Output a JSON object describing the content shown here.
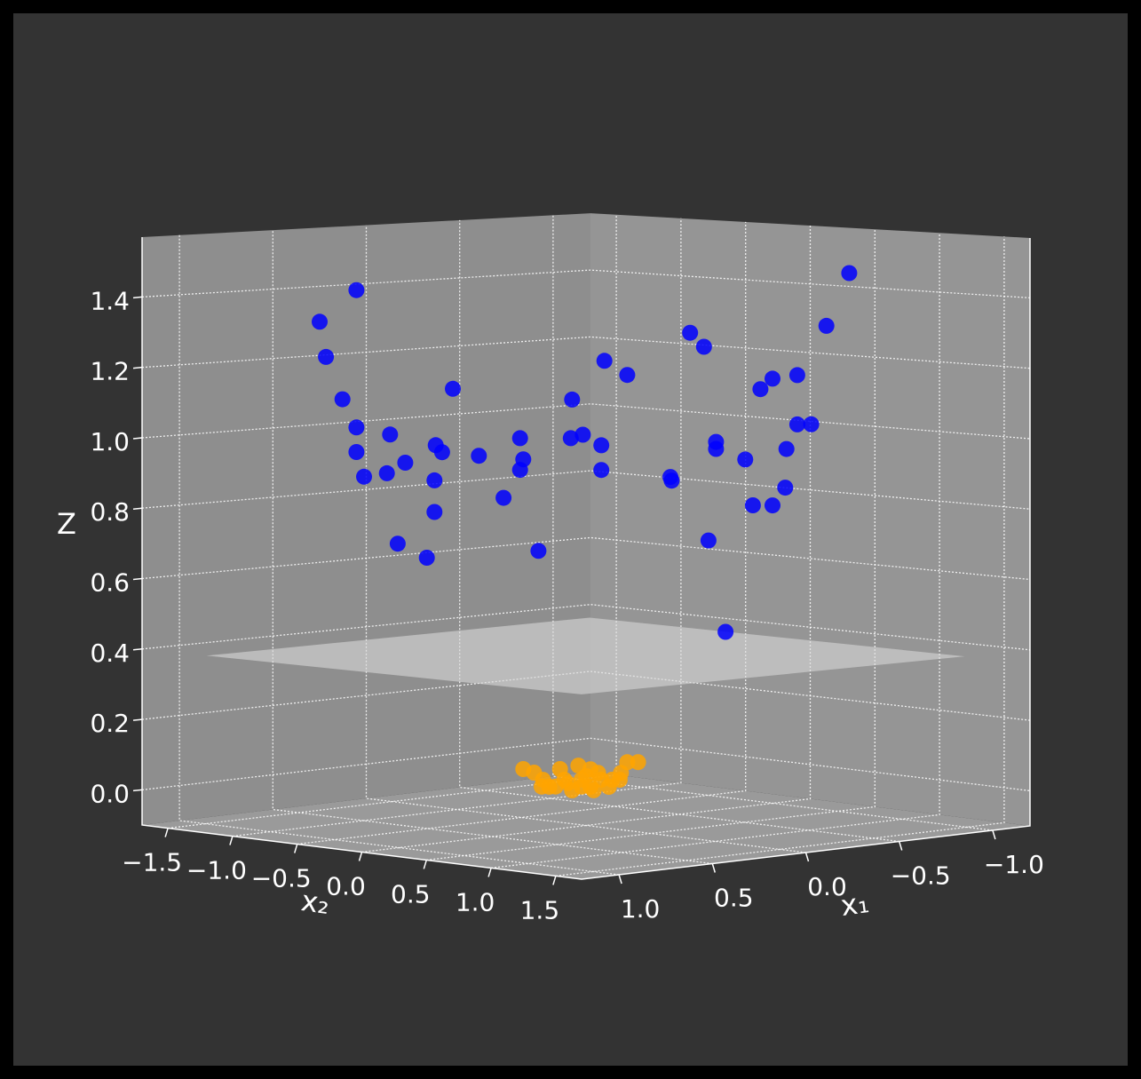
{
  "chart_data": {
    "type": "scatter3d",
    "x1label": "x₁",
    "x2label": "x₂",
    "zlabel": "Z",
    "x1lim": [
      -1.2,
      1.2
    ],
    "x2lim": [
      -1.7,
      1.7
    ],
    "zlim": [
      -0.1,
      1.57
    ],
    "x1ticks": [
      {
        "value": -1.0,
        "label": "−1.0"
      },
      {
        "value": -0.5,
        "label": "−0.5"
      },
      {
        "value": 0.0,
        "label": "0.0"
      },
      0.5,
      {
        "value": 1.0,
        "label": "1.0"
      }
    ],
    "x2ticks": [
      {
        "value": -1.5,
        "label": "−1.5"
      },
      {
        "value": -1.0,
        "label": "−1.0"
      },
      {
        "value": -0.5,
        "label": "−0.5"
      },
      {
        "value": 0.0,
        "label": "0.0"
      },
      0.5,
      {
        "value": 1.0,
        "label": "1.0"
      },
      1.5
    ],
    "zticks": [
      {
        "value": 0.0,
        "label": "0.0"
      },
      0.2,
      0.4,
      0.6,
      0.8,
      {
        "value": 1.0,
        "label": "1.0"
      },
      1.2,
      1.4
    ],
    "grid": true,
    "plane": {
      "z": 0.4,
      "x1lim": [
        -0.85,
        1.2
      ],
      "x2lim": [
        -1.2,
        1.7
      ],
      "color": "#d9d9d9"
    },
    "series": [
      {
        "color": "#0000ff",
        "x1": [
          0.62,
          0.72,
          0.7,
          0.66,
          0.62,
          0.62,
          0.6,
          0.53,
          0.54,
          0.49,
          0.41,
          0.39,
          0.41,
          0.41,
          0.51,
          0.43,
          0.36,
          0.29,
          0.22,
          0.18,
          0.17,
          0.18,
          0.13,
          0.04,
          0.04,
          0.01,
          -0.04,
          -0.04,
          -0.05,
          -0.11,
          -0.23,
          -0.23,
          -0.28,
          -0.32,
          -0.33,
          -0.38,
          -0.35,
          -0.35,
          -0.43,
          -0.47,
          -0.5,
          -0.57,
          -0.57,
          -0.61,
          -0.54,
          -0.54,
          -0.45,
          -0.5,
          -0.65,
          -0.71
        ],
        "x2": [
          -0.88,
          -1.02,
          -1.0,
          -0.93,
          -0.88,
          -0.88,
          -0.85,
          -0.75,
          -0.76,
          -0.69,
          -0.57,
          -0.55,
          -0.58,
          -0.58,
          -0.72,
          -0.61,
          -0.51,
          -0.41,
          -0.32,
          -0.25,
          -0.24,
          -0.25,
          -0.18,
          -0.05,
          -0.06,
          -0.01,
          0.06,
          0.06,
          0.07,
          0.16,
          0.32,
          0.33,
          0.4,
          0.45,
          0.47,
          0.53,
          0.5,
          0.5,
          0.61,
          0.67,
          0.72,
          0.81,
          0.81,
          0.86,
          0.77,
          0.76,
          0.64,
          0.72,
          0.92,
          1.01
        ],
        "z": [
          1.42,
          1.33,
          1.23,
          1.11,
          1.03,
          0.96,
          0.89,
          1.01,
          0.9,
          0.93,
          0.98,
          0.96,
          0.88,
          0.79,
          0.7,
          0.66,
          1.14,
          0.95,
          0.83,
          1.0,
          0.94,
          0.91,
          0.68,
          1.11,
          1.0,
          1.01,
          0.98,
          0.91,
          1.22,
          1.18,
          0.89,
          0.88,
          1.3,
          1.26,
          0.71,
          0.45,
          0.99,
          0.97,
          0.94,
          1.14,
          1.17,
          1.18,
          1.04,
          1.04,
          0.97,
          0.86,
          0.81,
          0.81,
          1.32,
          1.47
        ]
      },
      {
        "color": "#ffa500",
        "x1": [
          0.17,
          0.14,
          0.12,
          0.1,
          0.07,
          0.05,
          0.02,
          0.01,
          0.0,
          -0.02,
          -0.04,
          -0.07,
          -0.09,
          -0.11,
          -0.14,
          0.08,
          0.04,
          -0.01,
          -0.06,
          -0.09,
          0.12,
          0.06,
          0.01,
          -0.03,
          -0.01
        ],
        "x2": [
          -0.24,
          -0.2,
          -0.16,
          -0.14,
          -0.1,
          -0.07,
          -0.03,
          -0.02,
          0.0,
          0.03,
          0.06,
          0.1,
          0.14,
          0.16,
          0.2,
          -0.12,
          -0.05,
          0.02,
          0.09,
          0.13,
          -0.17,
          -0.08,
          -0.02,
          0.05,
          0.02
        ],
        "z": [
          0.06,
          0.05,
          0.03,
          0.01,
          0.06,
          0.02,
          0.07,
          0.01,
          0.04,
          0.0,
          0.03,
          0.03,
          0.05,
          0.08,
          0.08,
          0.01,
          0.0,
          0.01,
          0.01,
          0.03,
          0.01,
          0.03,
          0.03,
          0.05,
          0.06
        ]
      }
    ]
  }
}
